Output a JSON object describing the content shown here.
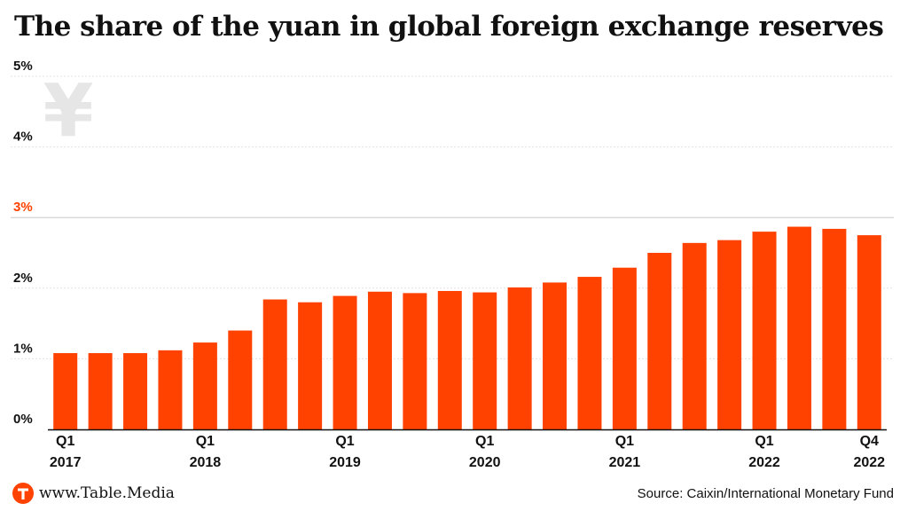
{
  "header": {
    "title": "The share of the yuan in global foreign exchange reserves"
  },
  "footer": {
    "brand": "www.Table.Media",
    "brand_logo_letter": "T",
    "source": "Source: Caixin/International Monetary Fund"
  },
  "colors": {
    "bar": "#ff4200",
    "highlight_tick": "#ff4200",
    "watermark": "#e6e6e6"
  },
  "watermark_icon": "yen-sign-icon",
  "chart_data": {
    "type": "bar",
    "title": "The share of the yuan in global foreign exchange reserves",
    "xlabel": "",
    "ylabel": "",
    "ylim": [
      0,
      5
    ],
    "y_ticks": [
      "0%",
      "1%",
      "2%",
      "3%",
      "4%",
      "5%"
    ],
    "highlight_y_tick": "3%",
    "grid": true,
    "categories": [
      "Q1 2017",
      "Q2 2017",
      "Q3 2017",
      "Q4 2017",
      "Q1 2018",
      "Q2 2018",
      "Q3 2018",
      "Q4 2018",
      "Q1 2019",
      "Q2 2019",
      "Q3 2019",
      "Q4 2019",
      "Q1 2020",
      "Q2 2020",
      "Q3 2020",
      "Q4 2020",
      "Q1 2021",
      "Q2 2021",
      "Q3 2021",
      "Q4 2021",
      "Q1 2022",
      "Q2 2022",
      "Q3 2022",
      "Q4 2022"
    ],
    "values": [
      1.08,
      1.08,
      1.08,
      1.12,
      1.23,
      1.4,
      1.84,
      1.8,
      1.89,
      1.95,
      1.93,
      1.96,
      1.94,
      2.01,
      2.08,
      2.16,
      2.29,
      2.5,
      2.64,
      2.68,
      2.8,
      2.87,
      2.84,
      2.75
    ],
    "x_tick_labels": [
      {
        "index": 0,
        "line1": "Q1",
        "line2": "2017"
      },
      {
        "index": 4,
        "line1": "Q1",
        "line2": "2018"
      },
      {
        "index": 8,
        "line1": "Q1",
        "line2": "2019"
      },
      {
        "index": 12,
        "line1": "Q1",
        "line2": "2020"
      },
      {
        "index": 16,
        "line1": "Q1",
        "line2": "2021"
      },
      {
        "index": 20,
        "line1": "Q1",
        "line2": "2022"
      },
      {
        "index": 23,
        "line1": "Q4",
        "line2": "2022"
      }
    ]
  }
}
